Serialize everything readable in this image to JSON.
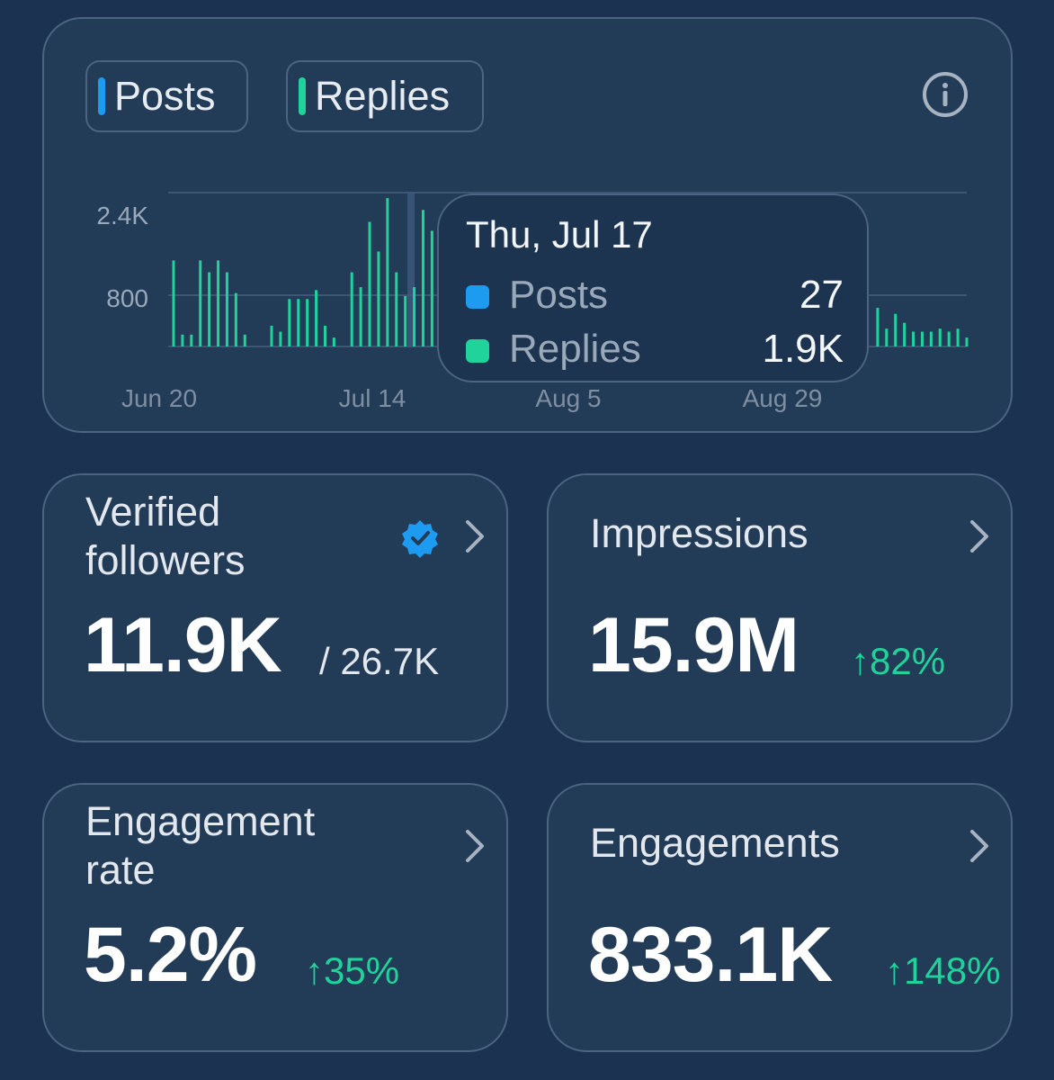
{
  "legend": {
    "posts_label": "Posts",
    "replies_label": "Replies"
  },
  "colors": {
    "posts": "#1d9bf0",
    "replies": "#1fd39a",
    "background": "#1b3350",
    "card": "#223b57",
    "delta_up": "#1fd39a"
  },
  "chart_data": {
    "type": "bar",
    "y_ticks": [
      "2.4K",
      "800"
    ],
    "x_ticks": [
      "Jun 20",
      "Jul 14",
      "Aug 5",
      "Aug 29"
    ],
    "series": [
      {
        "name": "Replies",
        "values": [
          1450,
          200,
          200,
          1450,
          1250,
          1450,
          1250,
          900,
          200,
          0,
          0,
          350,
          250,
          800,
          800,
          800,
          950,
          350,
          150,
          0,
          1250,
          1000,
          2100,
          1600,
          2500,
          1250,
          850,
          1000,
          2300,
          1950,
          2100,
          1300,
          1900,
          2300,
          1700,
          1150,
          1600,
          0,
          0,
          0,
          0,
          0,
          0,
          0,
          0,
          0,
          0,
          0,
          0,
          0,
          0,
          0,
          0,
          0,
          0,
          0,
          0,
          0,
          0,
          0,
          0,
          0,
          0,
          0,
          0,
          0,
          0,
          0,
          0,
          0,
          0,
          0,
          0,
          0,
          0,
          0,
          0,
          0,
          0,
          650,
          300,
          550,
          400,
          250,
          250,
          250,
          300,
          250,
          300,
          150
        ]
      }
    ],
    "highlight": {
      "date": "Thu, Jul 17",
      "rows": [
        {
          "name": "Posts",
          "value": "27"
        },
        {
          "name": "Replies",
          "value": "1.9K"
        }
      ]
    }
  },
  "info_icon": "info-circle-icon",
  "stats": {
    "verified_followers": {
      "title_line1": "Verified",
      "title_line2": "followers",
      "value": "11.9K",
      "total": "/ 26.7K",
      "badge_icon": "verified-badge-icon"
    },
    "impressions": {
      "title": "Impressions",
      "value": "15.9M",
      "delta": "↑82%"
    },
    "engagement_rate": {
      "title_line1": "Engagement",
      "title_line2": "rate",
      "value": "5.2%",
      "delta": "↑35%"
    },
    "engagements": {
      "title": "Engagements",
      "value": "833.1K",
      "delta": "↑148%"
    }
  }
}
